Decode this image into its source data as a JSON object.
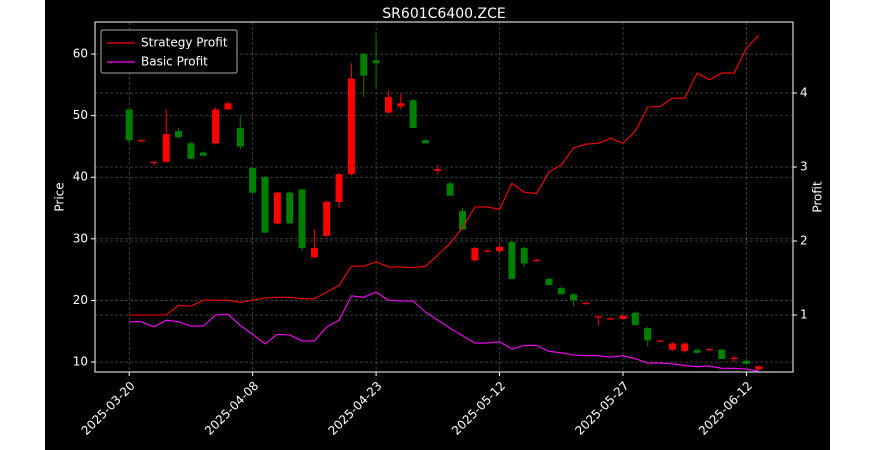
{
  "chart_data": {
    "type": "candlestick",
    "title": "SR601C6400.ZCE",
    "ylabel": "Price",
    "y2label": "Profit",
    "categories": [
      "2025-03-20",
      null,
      null,
      null,
      null,
      null,
      null,
      null,
      null,
      null,
      "2025-04-08",
      null,
      null,
      null,
      null,
      null,
      null,
      null,
      null,
      null,
      "2025-04-23",
      null,
      null,
      null,
      null,
      null,
      null,
      null,
      null,
      null,
      "2025-05-12",
      null,
      null,
      null,
      null,
      null,
      null,
      null,
      null,
      null,
      "2025-05-27",
      null,
      null,
      null,
      null,
      null,
      null,
      null,
      null,
      null,
      "2025-06-12",
      null
    ],
    "open": [
      51,
      46,
      42.3,
      42.5,
      47.5,
      45.5,
      44,
      45.5,
      51,
      48,
      41.5,
      40,
      32.5,
      37.5,
      38,
      27,
      30.5,
      36,
      40.5,
      60,
      59,
      50.5,
      51.5,
      52.5,
      46,
      41,
      39,
      34.5,
      26.5,
      28,
      28,
      29.5,
      28.5,
      26.5,
      23.5,
      22,
      21,
      19.5,
      17.3,
      17,
      17,
      18,
      15.5,
      13.4,
      12,
      11.8,
      12,
      12,
      12,
      10.5,
      10.2,
      8.8
    ],
    "high": [
      51.2,
      46.2,
      42.6,
      51,
      48,
      45.8,
      44.2,
      51.3,
      52.3,
      50,
      41.7,
      40.2,
      37.6,
      37.7,
      38.2,
      31.5,
      36.2,
      40.7,
      58.5,
      60.2,
      63.5,
      54,
      53.5,
      52.7,
      46.2,
      42,
      39.2,
      35,
      28.7,
      28.2,
      29,
      29.7,
      28.7,
      26.7,
      23.7,
      22.2,
      21.2,
      19.7,
      17.5,
      17.2,
      17.7,
      18.2,
      15.7,
      13.6,
      13.2,
      13.2,
      12.2,
      12.2,
      12.2,
      11,
      10.3,
      9.4
    ],
    "low": [
      45.5,
      45.8,
      42,
      42.3,
      46.3,
      43,
      43.5,
      45.3,
      51,
      44.5,
      37.5,
      31,
      32.3,
      32.5,
      28,
      27,
      30.3,
      35,
      40.3,
      53,
      54.5,
      50.3,
      51,
      48,
      45.5,
      40.5,
      37,
      31.5,
      26.3,
      27.8,
      27.8,
      23.5,
      25.5,
      26.3,
      22.5,
      21,
      19,
      19.3,
      16,
      16.8,
      16.8,
      16,
      12.5,
      13.2,
      11.8,
      11.5,
      11.5,
      11.8,
      10.5,
      10,
      9.7,
      8.7
    ],
    "close": [
      46,
      46,
      42.5,
      47,
      46.5,
      43,
      43.5,
      51,
      52,
      45,
      37.5,
      31,
      37.5,
      32.5,
      28.5,
      28.5,
      36,
      40.5,
      56,
      56.5,
      58.5,
      53,
      52,
      48,
      45.5,
      41.3,
      37,
      31.5,
      28.5,
      28.1,
      28.7,
      23.5,
      26,
      26.6,
      22.5,
      21,
      20,
      19.6,
      17.4,
      17.1,
      17.5,
      16,
      13.5,
      13.5,
      13,
      13,
      11.5,
      12.1,
      10.5,
      10.7,
      9.7,
      9.3
    ],
    "up_color": "#ff0000",
    "down_color": "#008000",
    "series": [
      {
        "name": "Strategy Profit",
        "color": "#ff0000",
        "axis": "y2",
        "values": [
          1.0,
          1.0,
          1.0,
          1.0,
          1.13,
          1.12,
          1.2,
          1.2,
          1.2,
          1.17,
          1.2,
          1.23,
          1.24,
          1.24,
          1.22,
          1.22,
          1.31,
          1.4,
          1.66,
          1.66,
          1.72,
          1.65,
          1.65,
          1.64,
          1.66,
          1.81,
          1.97,
          2.18,
          2.46,
          2.46,
          2.43,
          2.78,
          2.66,
          2.64,
          2.93,
          3.03,
          3.26,
          3.31,
          3.32,
          3.39,
          3.32,
          3.49,
          3.81,
          3.82,
          3.93,
          3.93,
          4.27,
          4.18,
          4.27,
          4.27,
          4.61,
          4.78
        ]
      },
      {
        "name": "Basic Profit",
        "color": "#ff00ff",
        "axis": "y2",
        "values": [
          0.91,
          0.91,
          0.84,
          0.93,
          0.91,
          0.85,
          0.85,
          1.0,
          1.01,
          0.86,
          0.74,
          0.61,
          0.74,
          0.73,
          0.65,
          0.65,
          0.84,
          0.93,
          1.26,
          1.24,
          1.31,
          1.2,
          1.19,
          1.19,
          1.04,
          0.93,
          0.82,
          0.72,
          0.62,
          0.62,
          0.64,
          0.54,
          0.59,
          0.59,
          0.51,
          0.49,
          0.46,
          0.45,
          0.45,
          0.43,
          0.45,
          0.41,
          0.35,
          0.35,
          0.34,
          0.32,
          0.3,
          0.31,
          0.28,
          0.28,
          0.27,
          0.24
        ]
      }
    ],
    "ylim": [
      8.38,
      65.2
    ],
    "yticks": [
      10,
      20,
      30,
      40,
      50,
      60
    ],
    "y2lim": [
      0.23,
      4.96
    ],
    "y2ticks": [
      1,
      2,
      3,
      4
    ],
    "grid": true,
    "legend": "upper left"
  }
}
